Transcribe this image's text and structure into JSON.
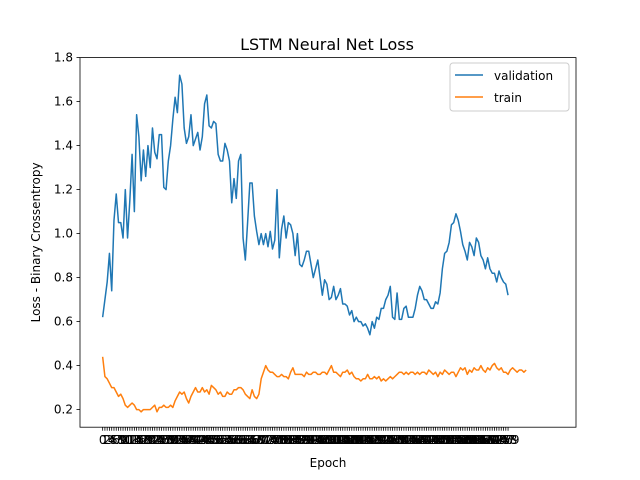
{
  "chart_data": {
    "type": "line",
    "title": "LSTM Neural Net Loss",
    "xlabel": "Epoch",
    "ylabel": "Loss - Binary Crossentropy",
    "xlim": [
      -10,
      209
    ],
    "ylim": [
      0.12,
      1.8
    ],
    "yticks": [
      0.2,
      0.4,
      0.6,
      0.8,
      1.0,
      1.2,
      1.4,
      1.6,
      1.8
    ],
    "grid": false,
    "legend_position": "top-right",
    "series": [
      {
        "name": "validation",
        "color": "#1f77b4",
        "values": [
          0.62,
          0.7,
          0.78,
          0.91,
          0.74,
          1.06,
          1.18,
          1.05,
          1.05,
          0.98,
          1.2,
          0.98,
          1.15,
          1.36,
          1.1,
          1.54,
          1.44,
          1.24,
          1.38,
          1.26,
          1.4,
          1.3,
          1.48,
          1.37,
          1.34,
          1.45,
          1.45,
          1.21,
          1.2,
          1.33,
          1.4,
          1.52,
          1.62,
          1.55,
          1.72,
          1.68,
          1.48,
          1.41,
          1.44,
          1.54,
          1.4,
          1.43,
          1.46,
          1.38,
          1.44,
          1.59,
          1.63,
          1.49,
          1.48,
          1.51,
          1.5,
          1.36,
          1.33,
          1.33,
          1.41,
          1.38,
          1.33,
          1.14,
          1.25,
          1.16,
          1.33,
          1.36,
          0.98,
          0.88,
          1.05,
          1.23,
          1.23,
          1.08,
          1.01,
          0.95,
          1.0,
          0.95,
          1.0,
          0.94,
          1.01,
          0.93,
          0.97,
          1.2,
          0.89,
          1.02,
          1.08,
          0.98,
          1.05,
          1.04,
          1.0,
          0.9,
          1.0,
          0.86,
          0.85,
          0.88,
          0.92,
          0.92,
          0.86,
          0.8,
          0.84,
          0.88,
          0.8,
          0.72,
          0.79,
          0.77,
          0.7,
          0.71,
          0.76,
          0.7,
          0.72,
          0.75,
          0.68,
          0.68,
          0.67,
          0.63,
          0.65,
          0.6,
          0.62,
          0.6,
          0.6,
          0.58,
          0.59,
          0.57,
          0.54,
          0.6,
          0.57,
          0.62,
          0.61,
          0.66,
          0.66,
          0.7,
          0.72,
          0.76,
          0.62,
          0.61,
          0.73,
          0.61,
          0.61,
          0.66,
          0.67,
          0.62,
          0.62,
          0.62,
          0.66,
          0.72,
          0.76,
          0.74,
          0.7,
          0.7,
          0.68,
          0.66,
          0.66,
          0.69,
          0.68,
          0.73,
          0.84,
          0.91,
          0.92,
          0.96,
          1.04,
          1.05,
          1.09,
          1.06,
          1.01,
          0.95,
          0.92,
          0.88,
          0.96,
          0.94,
          0.9,
          0.98,
          0.96,
          0.9,
          0.88,
          0.84,
          0.89,
          0.84,
          0.82,
          0.82,
          0.78,
          0.83,
          0.8,
          0.78,
          0.77,
          0.72
        ]
      },
      {
        "name": "train",
        "color": "#ff7f0e",
        "values": [
          0.44,
          0.35,
          0.34,
          0.32,
          0.3,
          0.3,
          0.28,
          0.26,
          0.27,
          0.25,
          0.22,
          0.21,
          0.22,
          0.23,
          0.22,
          0.2,
          0.2,
          0.19,
          0.2,
          0.2,
          0.2,
          0.2,
          0.21,
          0.22,
          0.19,
          0.21,
          0.21,
          0.22,
          0.21,
          0.21,
          0.22,
          0.21,
          0.24,
          0.26,
          0.28,
          0.27,
          0.28,
          0.25,
          0.23,
          0.26,
          0.28,
          0.3,
          0.28,
          0.28,
          0.3,
          0.28,
          0.29,
          0.27,
          0.31,
          0.3,
          0.29,
          0.27,
          0.28,
          0.26,
          0.26,
          0.28,
          0.27,
          0.27,
          0.29,
          0.29,
          0.3,
          0.3,
          0.29,
          0.27,
          0.26,
          0.25,
          0.29,
          0.26,
          0.25,
          0.27,
          0.34,
          0.37,
          0.4,
          0.38,
          0.37,
          0.37,
          0.36,
          0.35,
          0.35,
          0.36,
          0.35,
          0.35,
          0.34,
          0.37,
          0.39,
          0.36,
          0.36,
          0.36,
          0.36,
          0.35,
          0.37,
          0.36,
          0.36,
          0.37,
          0.37,
          0.36,
          0.36,
          0.37,
          0.37,
          0.36,
          0.38,
          0.4,
          0.37,
          0.37,
          0.36,
          0.35,
          0.37,
          0.37,
          0.38,
          0.36,
          0.37,
          0.35,
          0.34,
          0.34,
          0.33,
          0.34,
          0.34,
          0.36,
          0.34,
          0.34,
          0.35,
          0.34,
          0.35,
          0.33,
          0.34,
          0.33,
          0.34,
          0.35,
          0.34,
          0.35,
          0.36,
          0.37,
          0.37,
          0.36,
          0.37,
          0.36,
          0.37,
          0.37,
          0.36,
          0.37,
          0.36,
          0.37,
          0.37,
          0.36,
          0.38,
          0.37,
          0.36,
          0.37,
          0.35,
          0.37,
          0.36,
          0.38,
          0.37,
          0.36,
          0.37,
          0.37,
          0.35,
          0.37,
          0.39,
          0.38,
          0.39,
          0.36,
          0.38,
          0.37,
          0.39,
          0.38,
          0.38,
          0.4,
          0.38,
          0.37,
          0.39,
          0.38,
          0.4,
          0.41,
          0.39,
          0.38,
          0.39,
          0.37,
          0.37,
          0.36,
          0.38,
          0.39,
          0.38,
          0.37,
          0.38,
          0.38,
          0.37,
          0.38
        ]
      }
    ]
  }
}
